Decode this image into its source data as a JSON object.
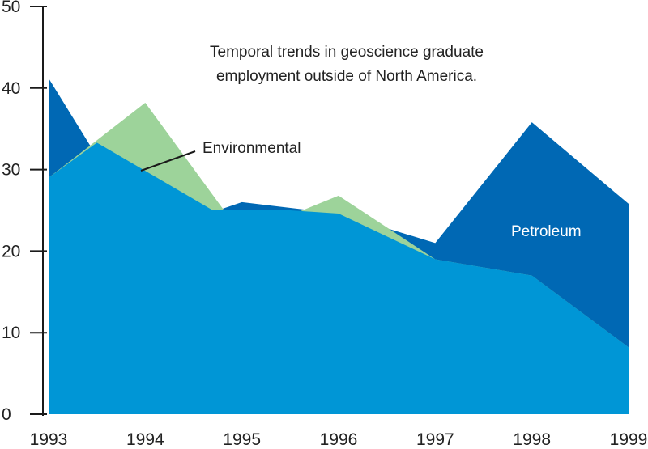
{
  "chart_data": {
    "type": "area",
    "title_lines": [
      "Temporal trends in geoscience graduate",
      "employment outside of North America."
    ],
    "xlabel": "",
    "ylabel": "",
    "x": [
      1993,
      1994,
      1995,
      1996,
      1997,
      1998,
      1999
    ],
    "x_tick_labels": [
      "1993",
      "1994",
      "1995",
      "1996",
      "1997",
      "1998",
      "1999"
    ],
    "y_tick_labels": [
      "0",
      "10",
      "20",
      "30",
      "40",
      "50"
    ],
    "ylim": [
      0,
      50
    ],
    "grid": false,
    "series": [
      {
        "name": "Petroleum",
        "color": "#0068b4",
        "points": [
          [
            1993,
            41.2
          ],
          [
            1994,
            22
          ],
          [
            1995,
            26
          ],
          [
            1996,
            24.6
          ],
          [
            1997,
            21
          ],
          [
            1998,
            35.8
          ],
          [
            1999,
            25.8
          ]
        ]
      },
      {
        "name": "Environmental",
        "color": "#9dd39a",
        "points": [
          [
            1993,
            29
          ],
          [
            1994,
            38.2
          ],
          [
            1995,
            22
          ],
          [
            1996,
            26.8
          ],
          [
            1997,
            19
          ],
          [
            1998,
            17
          ],
          [
            1999,
            8.2
          ]
        ]
      },
      {
        "name": "",
        "color": "#0096d6",
        "points": [
          [
            1993,
            29
          ],
          [
            1993.5,
            33.3
          ],
          [
            1994.7,
            25
          ],
          [
            1995.5,
            25
          ],
          [
            1996,
            24.6
          ],
          [
            1997,
            19
          ],
          [
            1998,
            17
          ],
          [
            1999,
            8.2
          ]
        ]
      }
    ],
    "labels": {
      "environmental": "Environmental",
      "petroleum": "Petroleum"
    }
  }
}
